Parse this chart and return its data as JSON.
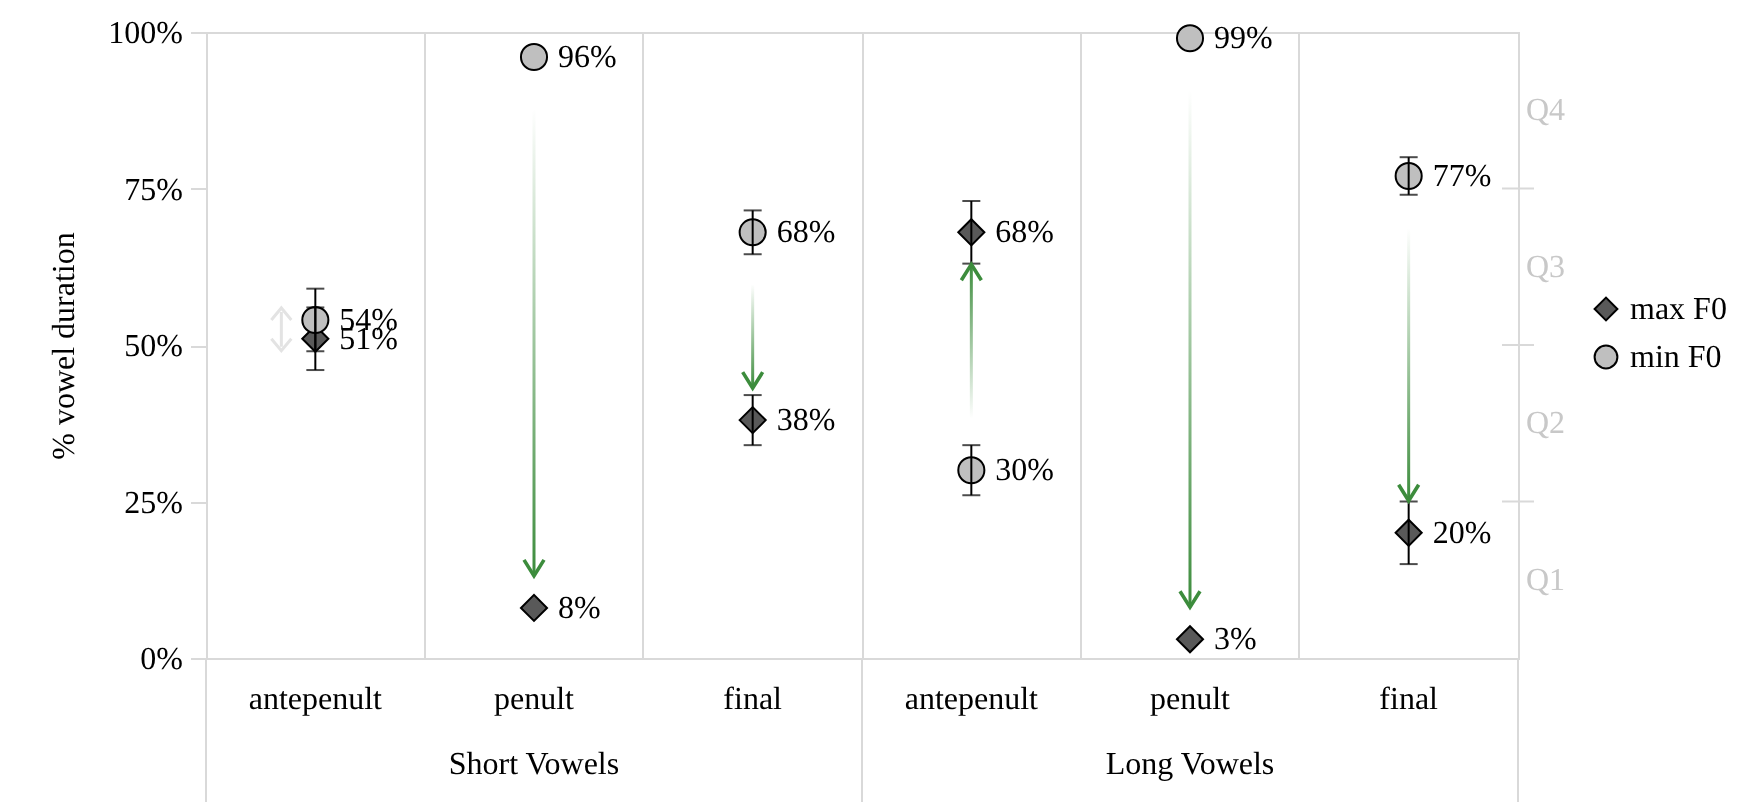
{
  "chart_data": {
    "type": "scatter",
    "ylabel": "% vowel duration",
    "categories": [
      "antepenult",
      "penult",
      "final",
      "antepenult",
      "penult",
      "final"
    ],
    "series": [
      {
        "name": "max F0",
        "color": "#595959",
        "marker": "diamond",
        "values": [
          51,
          8,
          38,
          68,
          3,
          20
        ],
        "errors": [
          5,
          null,
          4,
          5,
          null,
          5
        ],
        "value_labels": [
          "51%",
          "8%",
          "38%",
          "68%",
          "3%",
          "20%"
        ]
      },
      {
        "name": "min F0",
        "color": "#bfbfbf",
        "marker": "circle",
        "values": [
          54,
          96,
          68,
          30,
          99,
          77
        ],
        "errors": [
          5,
          null,
          3.5,
          4,
          null,
          3
        ],
        "value_labels": [
          "54%",
          "96%",
          "68%",
          "30%",
          "99%",
          "77%"
        ]
      }
    ],
    "ylim": [
      0,
      100
    ],
    "yticks": [
      {
        "value": 0,
        "label": "0%"
      },
      {
        "value": 25,
        "label": "25%"
      },
      {
        "value": 50,
        "label": "50%"
      },
      {
        "value": 75,
        "label": "75%"
      },
      {
        "value": 100,
        "label": "100%"
      }
    ],
    "annotations": [
      "Short Vowels",
      "Long Vowels",
      "Q1",
      "Q2",
      "Q3",
      "Q4"
    ],
    "grid": "x",
    "legend": "right"
  }
}
